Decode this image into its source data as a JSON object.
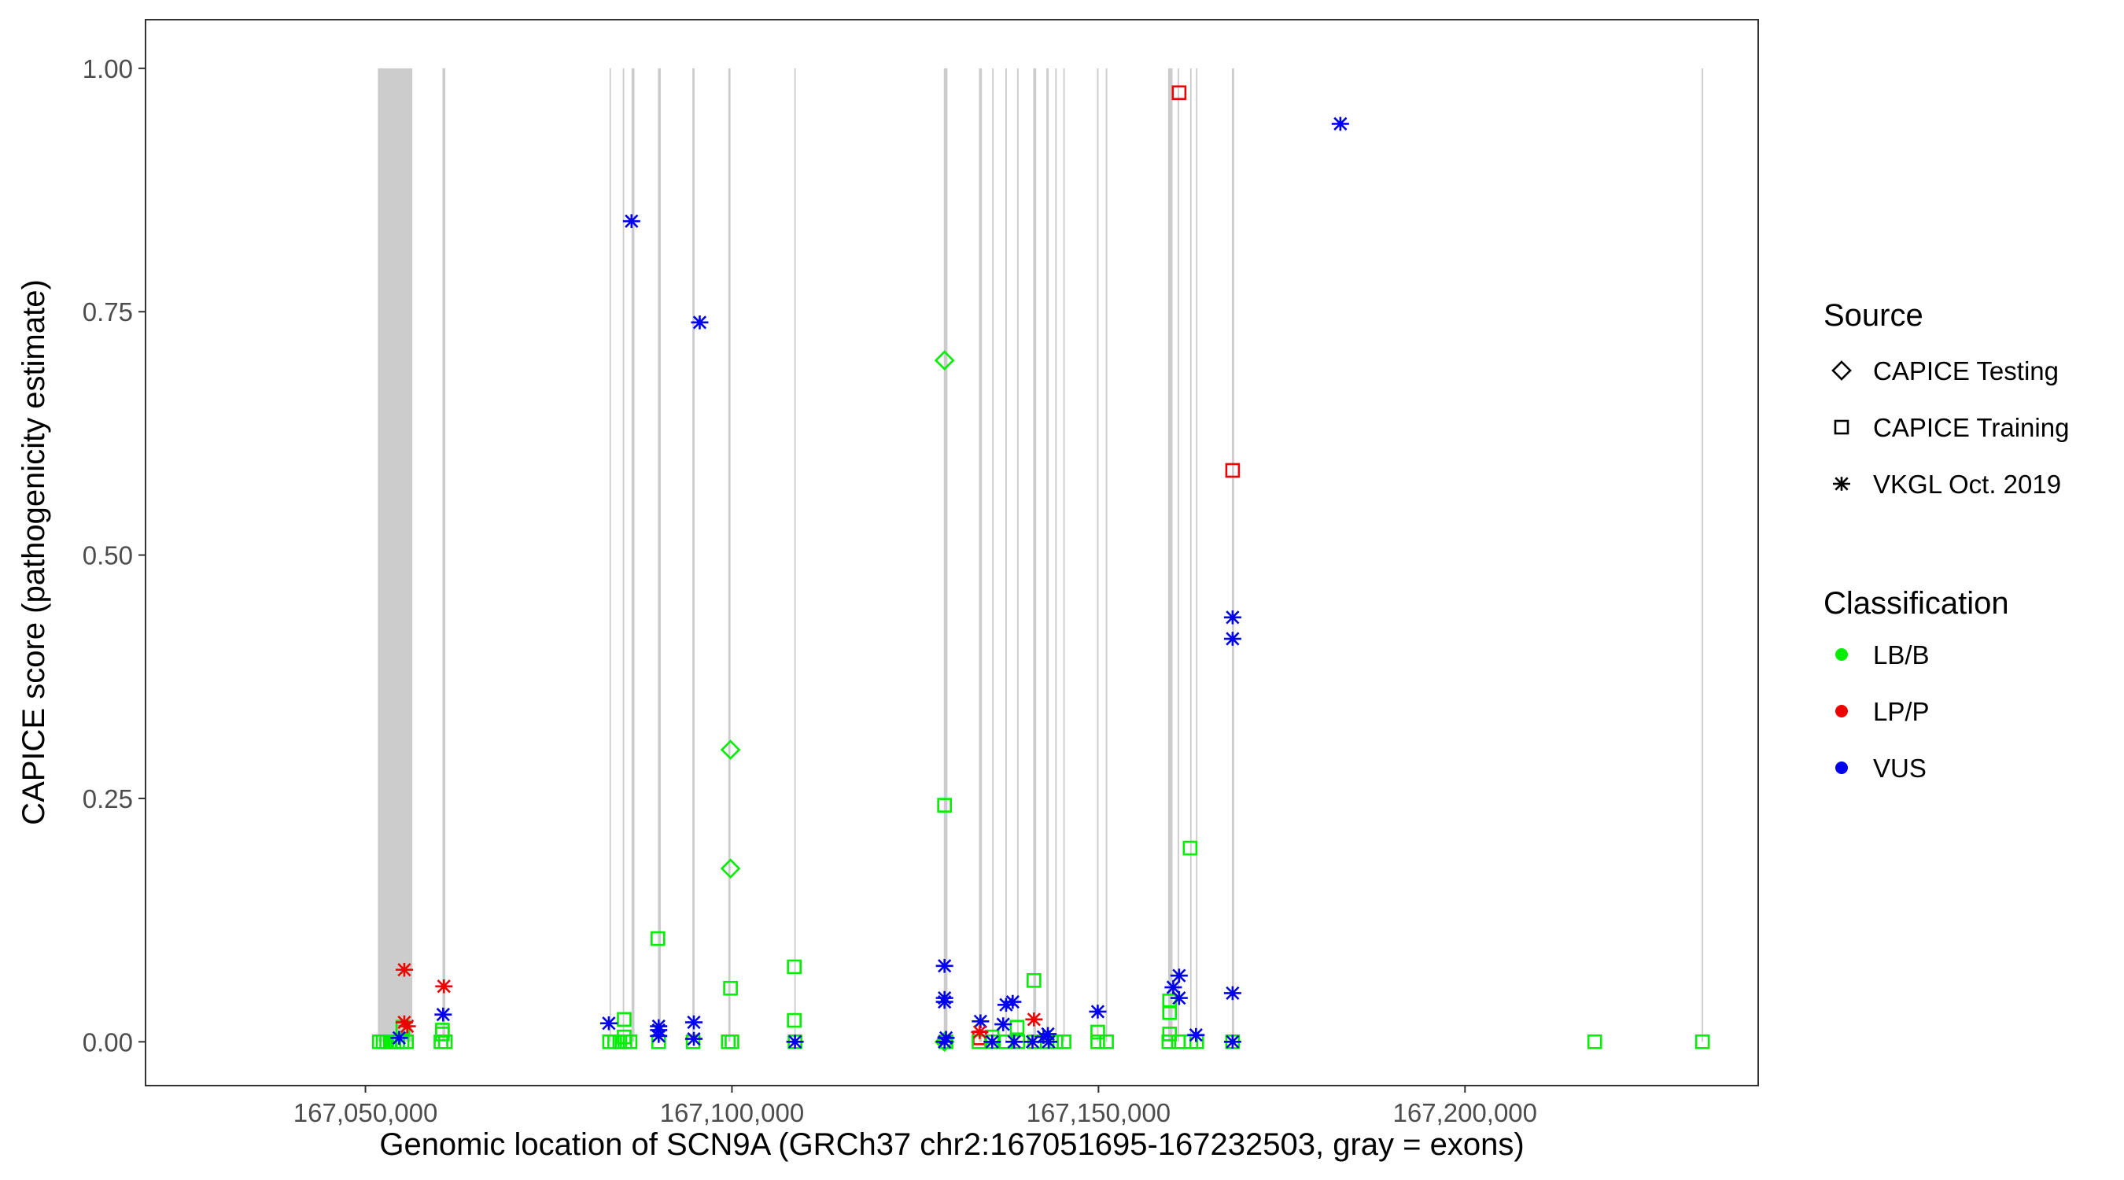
{
  "chart_data": {
    "type": "scatter",
    "title": "",
    "xlabel": "Genomic location of SCN9A (GRCh37 chr2:167051695-167232503, gray = exons)",
    "ylabel": "CAPICE score (pathogenicity estimate)",
    "xlim": [
      167020000,
      167240000
    ],
    "ylim": [
      -0.045,
      1.05
    ],
    "x_ticks": [
      167050000,
      167100000,
      167150000,
      167200000
    ],
    "x_tick_labels": [
      "167,050,000",
      "167,100,000",
      "167,150,000",
      "167,200,000"
    ],
    "y_ticks": [
      0,
      0.25,
      0.5,
      0.75,
      1.0
    ],
    "y_tick_labels": [
      "0.00",
      "0.25",
      "0.50",
      "0.75",
      "1.00"
    ],
    "exons": [
      [
        167051695,
        167056400
      ],
      [
        167060500,
        167060900
      ],
      [
        167083300,
        167083500
      ],
      [
        167085100,
        167085300
      ],
      [
        167086300,
        167086700
      ],
      [
        167089900,
        167090300
      ],
      [
        167094600,
        167094900
      ],
      [
        167099500,
        167099800
      ],
      [
        167108500,
        167108700
      ],
      [
        167128900,
        167129400
      ],
      [
        167133700,
        167134100
      ],
      [
        167135500,
        167135700
      ],
      [
        167137300,
        167137500
      ],
      [
        167138900,
        167139100
      ],
      [
        167141100,
        167141500
      ],
      [
        167142900,
        167143200
      ],
      [
        167144100,
        167144300
      ],
      [
        167145200,
        167145400
      ],
      [
        167149800,
        167150000
      ],
      [
        167151000,
        167151200
      ],
      [
        167159500,
        167160100
      ],
      [
        167160800,
        167161000
      ],
      [
        167162500,
        167162700
      ],
      [
        167163300,
        167163500
      ],
      [
        167168200,
        167168500
      ],
      [
        167232300,
        167232500
      ]
    ],
    "series": [
      {
        "name": "CAPICE Testing",
        "shape": "diamond",
        "points": [
          {
            "x": 167129000,
            "y": 0.7,
            "cls": "LB/B"
          },
          {
            "x": 167099800,
            "y": 0.3,
            "cls": "LB/B"
          },
          {
            "x": 167099800,
            "y": 0.178,
            "cls": "LB/B"
          },
          {
            "x": 167129000,
            "y": 0.0,
            "cls": "LB/B"
          }
        ]
      },
      {
        "name": "CAPICE Training",
        "shape": "square",
        "points": [
          {
            "x": 167161000,
            "y": 0.975,
            "cls": "LP/P"
          },
          {
            "x": 167168300,
            "y": 0.587,
            "cls": "LP/P"
          },
          {
            "x": 167129000,
            "y": 0.243,
            "cls": "LB/B"
          },
          {
            "x": 167162500,
            "y": 0.199,
            "cls": "LB/B"
          },
          {
            "x": 167089900,
            "y": 0.106,
            "cls": "LB/B"
          },
          {
            "x": 167108500,
            "y": 0.077,
            "cls": "LB/B"
          },
          {
            "x": 167141200,
            "y": 0.063,
            "cls": "LB/B"
          },
          {
            "x": 167099800,
            "y": 0.055,
            "cls": "LB/B"
          },
          {
            "x": 167159700,
            "y": 0.042,
            "cls": "LB/B"
          },
          {
            "x": 167159700,
            "y": 0.03,
            "cls": "LB/B"
          },
          {
            "x": 167085300,
            "y": 0.023,
            "cls": "LB/B"
          },
          {
            "x": 167108500,
            "y": 0.022,
            "cls": "LB/B"
          },
          {
            "x": 167138900,
            "y": 0.015,
            "cls": "LB/B"
          },
          {
            "x": 167055100,
            "y": 0.015,
            "cls": "LB/B"
          },
          {
            "x": 167060500,
            "y": 0.012,
            "cls": "LB/B"
          },
          {
            "x": 167149900,
            "y": 0.01,
            "cls": "LB/B"
          },
          {
            "x": 167060500,
            "y": 0.008,
            "cls": "LB/B"
          },
          {
            "x": 167159700,
            "y": 0.008,
            "cls": "LB/B"
          },
          {
            "x": 167135500,
            "y": 0.005,
            "cls": "LB/B"
          },
          {
            "x": 167133800,
            "y": 0.004,
            "cls": "LP/P"
          },
          {
            "x": 167085300,
            "y": 0.005,
            "cls": "LB/B"
          },
          {
            "x": 167051900,
            "y": 0.0,
            "cls": "LB/B"
          },
          {
            "x": 167052400,
            "y": 0.0,
            "cls": "LB/B"
          },
          {
            "x": 167052900,
            "y": 0.0,
            "cls": "LB/B"
          },
          {
            "x": 167053400,
            "y": 0.0,
            "cls": "LB/B"
          },
          {
            "x": 167053900,
            "y": 0.0,
            "cls": "LB/B"
          },
          {
            "x": 167054400,
            "y": 0.0,
            "cls": "LB/B"
          },
          {
            "x": 167055000,
            "y": 0.0,
            "cls": "LB/B"
          },
          {
            "x": 167055600,
            "y": 0.0,
            "cls": "LB/B"
          },
          {
            "x": 167060300,
            "y": 0.0,
            "cls": "LB/B"
          },
          {
            "x": 167060900,
            "y": 0.0,
            "cls": "LB/B"
          },
          {
            "x": 167083300,
            "y": 0.0,
            "cls": "LB/B"
          },
          {
            "x": 167084000,
            "y": 0.0,
            "cls": "LB/B"
          },
          {
            "x": 167084700,
            "y": 0.0,
            "cls": "LB/B"
          },
          {
            "x": 167085400,
            "y": 0.0,
            "cls": "LB/B"
          },
          {
            "x": 167086100,
            "y": 0.0,
            "cls": "LB/B"
          },
          {
            "x": 167090000,
            "y": 0.0,
            "cls": "LB/B"
          },
          {
            "x": 167094700,
            "y": 0.0,
            "cls": "LB/B"
          },
          {
            "x": 167099500,
            "y": 0.0,
            "cls": "LB/B"
          },
          {
            "x": 167100000,
            "y": 0.0,
            "cls": "LB/B"
          },
          {
            "x": 167108600,
            "y": 0.0,
            "cls": "LB/B"
          },
          {
            "x": 167129200,
            "y": 0.0,
            "cls": "LB/B"
          },
          {
            "x": 167133700,
            "y": 0.0,
            "cls": "LB/B"
          },
          {
            "x": 167135500,
            "y": 0.0,
            "cls": "LB/B"
          },
          {
            "x": 167137400,
            "y": 0.0,
            "cls": "LB/B"
          },
          {
            "x": 167139000,
            "y": 0.0,
            "cls": "LB/B"
          },
          {
            "x": 167141300,
            "y": 0.0,
            "cls": "LB/B"
          },
          {
            "x": 167143000,
            "y": 0.0,
            "cls": "LB/B"
          },
          {
            "x": 167144200,
            "y": 0.0,
            "cls": "LB/B"
          },
          {
            "x": 167145300,
            "y": 0.0,
            "cls": "LB/B"
          },
          {
            "x": 167149900,
            "y": 0.0,
            "cls": "LB/B"
          },
          {
            "x": 167151100,
            "y": 0.0,
            "cls": "LB/B"
          },
          {
            "x": 167159600,
            "y": 0.0,
            "cls": "LB/B"
          },
          {
            "x": 167160900,
            "y": 0.0,
            "cls": "LB/B"
          },
          {
            "x": 167162600,
            "y": 0.0,
            "cls": "LB/B"
          },
          {
            "x": 167163400,
            "y": 0.0,
            "cls": "LB/B"
          },
          {
            "x": 167168300,
            "y": 0.0,
            "cls": "LB/B"
          },
          {
            "x": 167217700,
            "y": 0.0,
            "cls": "LB/B"
          },
          {
            "x": 167232400,
            "y": 0.0,
            "cls": "LB/B"
          }
        ]
      },
      {
        "name": "VKGL Oct. 2019",
        "shape": "asterisk",
        "points": [
          {
            "x": 167183000,
            "y": 0.943,
            "cls": "VUS"
          },
          {
            "x": 167086300,
            "y": 0.843,
            "cls": "VUS"
          },
          {
            "x": 167095600,
            "y": 0.739,
            "cls": "VUS"
          },
          {
            "x": 167168300,
            "y": 0.436,
            "cls": "VUS"
          },
          {
            "x": 167168300,
            "y": 0.414,
            "cls": "VUS"
          },
          {
            "x": 167129000,
            "y": 0.078,
            "cls": "VUS"
          },
          {
            "x": 167055300,
            "y": 0.074,
            "cls": "LP/P"
          },
          {
            "x": 167161000,
            "y": 0.068,
            "cls": "VUS"
          },
          {
            "x": 167060700,
            "y": 0.057,
            "cls": "LP/P"
          },
          {
            "x": 167160200,
            "y": 0.056,
            "cls": "VUS"
          },
          {
            "x": 167168300,
            "y": 0.05,
            "cls": "VUS"
          },
          {
            "x": 167129000,
            "y": 0.045,
            "cls": "VUS"
          },
          {
            "x": 167161000,
            "y": 0.045,
            "cls": "VUS"
          },
          {
            "x": 167129000,
            "y": 0.041,
            "cls": "VUS"
          },
          {
            "x": 167138300,
            "y": 0.041,
            "cls": "VUS"
          },
          {
            "x": 167137400,
            "y": 0.038,
            "cls": "VUS"
          },
          {
            "x": 167149900,
            "y": 0.031,
            "cls": "VUS"
          },
          {
            "x": 167060600,
            "y": 0.028,
            "cls": "VUS"
          },
          {
            "x": 167141200,
            "y": 0.023,
            "cls": "LP/P"
          },
          {
            "x": 167133900,
            "y": 0.021,
            "cls": "VUS"
          },
          {
            "x": 167055300,
            "y": 0.02,
            "cls": "LP/P"
          },
          {
            "x": 167094800,
            "y": 0.02,
            "cls": "VUS"
          },
          {
            "x": 167083200,
            "y": 0.019,
            "cls": "VUS"
          },
          {
            "x": 167137000,
            "y": 0.018,
            "cls": "VUS"
          },
          {
            "x": 167055700,
            "y": 0.016,
            "cls": "LP/P"
          },
          {
            "x": 167090000,
            "y": 0.016,
            "cls": "VUS"
          },
          {
            "x": 167090000,
            "y": 0.012,
            "cls": "VUS"
          },
          {
            "x": 167133800,
            "y": 0.01,
            "cls": "LP/P"
          },
          {
            "x": 167143100,
            "y": 0.008,
            "cls": "VUS"
          },
          {
            "x": 167163300,
            "y": 0.007,
            "cls": "VUS"
          },
          {
            "x": 167090000,
            "y": 0.006,
            "cls": "VUS"
          },
          {
            "x": 167142500,
            "y": 0.005,
            "cls": "VUS"
          },
          {
            "x": 167129200,
            "y": 0.004,
            "cls": "VUS"
          },
          {
            "x": 167054600,
            "y": 0.004,
            "cls": "VUS"
          },
          {
            "x": 167094800,
            "y": 0.003,
            "cls": "VUS"
          },
          {
            "x": 167108600,
            "y": 0.0,
            "cls": "VUS"
          },
          {
            "x": 167129000,
            "y": 0.0,
            "cls": "VUS"
          },
          {
            "x": 167135500,
            "y": 0.0,
            "cls": "VUS"
          },
          {
            "x": 167138500,
            "y": 0.0,
            "cls": "VUS"
          },
          {
            "x": 167141000,
            "y": 0.0,
            "cls": "VUS"
          },
          {
            "x": 167143200,
            "y": 0.0,
            "cls": "VUS"
          },
          {
            "x": 167168300,
            "y": 0.0,
            "cls": "VUS"
          }
        ]
      }
    ],
    "classes": [
      {
        "name": "LB/B",
        "color": "#00ee00"
      },
      {
        "name": "LP/P",
        "color": "#ee0000"
      },
      {
        "name": "VUS",
        "color": "#0000ee"
      }
    ]
  },
  "legend": {
    "source_title": "Source",
    "source_items": [
      {
        "label": "CAPICE Testing",
        "shape": "diamond"
      },
      {
        "label": "CAPICE Training",
        "shape": "square"
      },
      {
        "label": "VKGL Oct. 2019",
        "shape": "asterisk"
      }
    ],
    "class_title": "Classification",
    "class_items": [
      {
        "label": "LB/B",
        "color": "#00ee00"
      },
      {
        "label": "LP/P",
        "color": "#ee0000"
      },
      {
        "label": "VUS",
        "color": "#0000ee"
      }
    ]
  },
  "colors": {
    "exon": "#cccccc",
    "panel_border": "#333333",
    "tick_text": "#4d4d4d",
    "text": "#000000"
  }
}
